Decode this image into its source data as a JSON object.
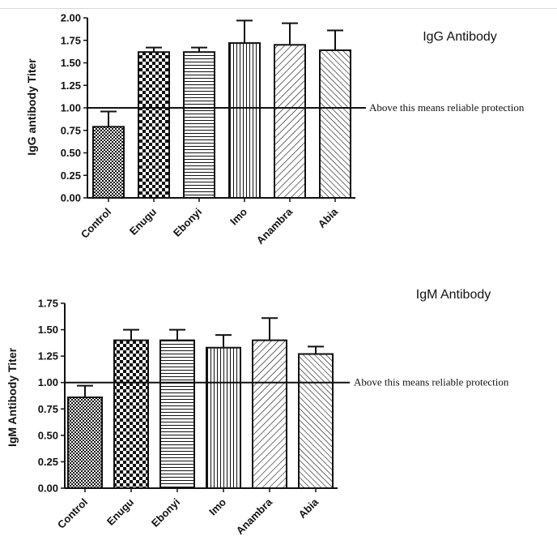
{
  "chart_data": [
    {
      "type": "bar",
      "title": "IgG Antibody",
      "ylabel": "IgG antibody Titer",
      "xlabel": "",
      "categories": [
        "Control",
        "Enugu",
        "Ebonyi",
        "Imo",
        "Anambra",
        "Abia"
      ],
      "values": [
        0.79,
        1.62,
        1.62,
        1.72,
        1.7,
        1.64
      ],
      "error_upper": [
        0.96,
        1.67,
        1.67,
        1.97,
        1.94,
        1.86
      ],
      "ylim": [
        0,
        2
      ],
      "yticks": [
        "0.00",
        "0.25",
        "0.50",
        "0.75",
        "1.00",
        "1.25",
        "1.50",
        "1.75",
        "2.00"
      ],
      "reference_line": {
        "value": 1.0,
        "label": "Above this means reliable protection"
      },
      "patterns": [
        "dense-check",
        "checker",
        "horizontal",
        "vertical",
        "diag-right",
        "diag-left"
      ]
    },
    {
      "type": "bar",
      "title": "IgM Antibody",
      "ylabel": "IgM Antibody Titer",
      "xlabel": "",
      "categories": [
        "Control",
        "Enugu",
        "Ebonyi",
        "Imo",
        "Anambra",
        "Abia"
      ],
      "values": [
        0.86,
        1.4,
        1.4,
        1.33,
        1.4,
        1.27
      ],
      "error_upper": [
        0.97,
        1.5,
        1.5,
        1.45,
        1.61,
        1.34
      ],
      "ylim": [
        0,
        1.75
      ],
      "yticks": [
        "0.00",
        "0.25",
        "0.50",
        "0.75",
        "1.00",
        "1.25",
        "1.50",
        "1.75"
      ],
      "reference_line": {
        "value": 1.0,
        "label": "Above this means reliable protection"
      },
      "patterns": [
        "dense-check",
        "checker",
        "horizontal",
        "vertical",
        "diag-right",
        "diag-left"
      ]
    }
  ]
}
